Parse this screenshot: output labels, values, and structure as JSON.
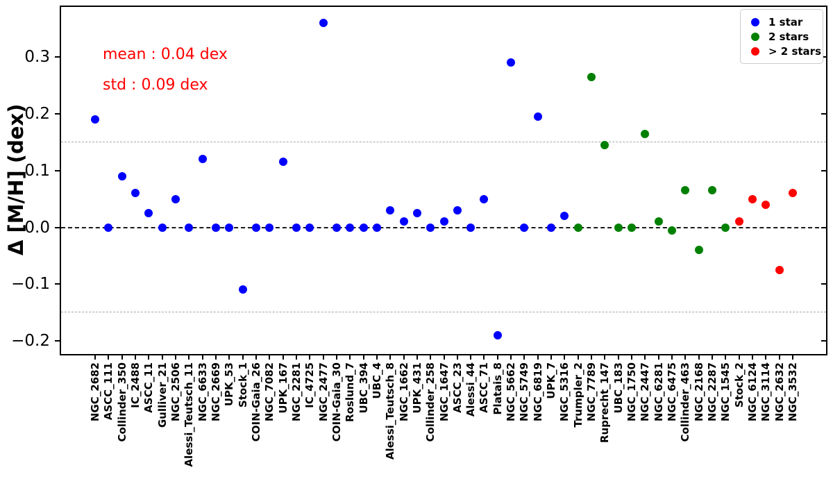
{
  "chart_data": {
    "type": "scatter",
    "title": "",
    "xlabel": "",
    "ylabel": "Δ [M/H] (dex)",
    "ylim": [
      -0.225,
      0.393
    ],
    "yticks": [
      0.3,
      0.2,
      0.1,
      0.0,
      -0.1,
      -0.2
    ],
    "grid": false,
    "legend_position": "upper right",
    "hlines": [
      {
        "y": 0.15,
        "style": "dashed",
        "color": "#a6a6a6",
        "kind": "minor"
      },
      {
        "y": 0.0,
        "style": "dashed",
        "color": "#1a1a1a",
        "kind": "major"
      },
      {
        "y": -0.15,
        "style": "dashed",
        "color": "#a6a6a6",
        "kind": "minor"
      }
    ],
    "annotations": [
      {
        "text": "mean : 0.04 dex",
        "color": "#ff0000"
      },
      {
        "text": "std : 0.09 dex",
        "color": "#ff0000"
      }
    ],
    "legend": [
      {
        "label": "1 star",
        "color": "#0000ff"
      },
      {
        "label": "2 stars",
        "color": "#008000"
      },
      {
        "label": "> 2 stars",
        "color": "#ff0000"
      }
    ],
    "categories": [
      "NGC_2682",
      "ASCC_111",
      "Collinder_350",
      "IC_2488",
      "ASCC_11",
      "Gulliver_21",
      "NGC_2506",
      "Alessi_Teutsch_11",
      "NGC_6633",
      "NGC_2669",
      "UPK_53",
      "Stock_1",
      "COIN-Gaia_26",
      "NGC_7082",
      "UPK_167",
      "NGC_2281",
      "IC_4725",
      "NGC_2477",
      "COIN-Gaia_30",
      "Roslund_7",
      "UBC_394",
      "UBC_4",
      "Alessi_Teutsch_8",
      "NGC_1662",
      "UPK_431",
      "Collinder_258",
      "NGC_1647",
      "ASCC_23",
      "Alessi_44",
      "ASCC_71",
      "Platais_8",
      "NGC_5662",
      "NGC_5749",
      "NGC_6819",
      "UPK_7",
      "NGC_5316",
      "Trumpler_2",
      "NGC_7789",
      "Ruprecht_147",
      "UBC_183",
      "NGC_1750",
      "NGC_2447",
      "NGC_6281",
      "NGC_6475",
      "Collinder_463",
      "NGC_2168",
      "NGC_2287",
      "NGC_1545",
      "Stock_2",
      "NGC_6124",
      "NGC_3114",
      "NGC_2632",
      "NGC_3532"
    ],
    "points": [
      {
        "cluster": "NGC_2682",
        "value": 0.19,
        "group": "1 star"
      },
      {
        "cluster": "ASCC_111",
        "value": 0.0,
        "group": "1 star"
      },
      {
        "cluster": "Collinder_350",
        "value": 0.09,
        "group": "1 star"
      },
      {
        "cluster": "IC_2488",
        "value": 0.06,
        "group": "1 star"
      },
      {
        "cluster": "ASCC_11",
        "value": 0.025,
        "group": "1 star"
      },
      {
        "cluster": "Gulliver_21",
        "value": 0.0,
        "group": "1 star"
      },
      {
        "cluster": "NGC_2506",
        "value": 0.05,
        "group": "1 star"
      },
      {
        "cluster": "Alessi_Teutsch_11",
        "value": 0.0,
        "group": "1 star"
      },
      {
        "cluster": "NGC_6633",
        "value": 0.12,
        "group": "1 star"
      },
      {
        "cluster": "NGC_2669",
        "value": 0.0,
        "group": "1 star"
      },
      {
        "cluster": "UPK_53",
        "value": 0.0,
        "group": "1 star"
      },
      {
        "cluster": "Stock_1",
        "value": -0.11,
        "group": "1 star"
      },
      {
        "cluster": "COIN-Gaia_26",
        "value": 0.0,
        "group": "1 star"
      },
      {
        "cluster": "NGC_7082",
        "value": 0.0,
        "group": "1 star"
      },
      {
        "cluster": "UPK_167",
        "value": 0.115,
        "group": "1 star"
      },
      {
        "cluster": "NGC_2281",
        "value": 0.0,
        "group": "1 star"
      },
      {
        "cluster": "IC_4725",
        "value": 0.0,
        "group": "1 star"
      },
      {
        "cluster": "NGC_2477",
        "value": 0.36,
        "group": "1 star"
      },
      {
        "cluster": "COIN-Gaia_30",
        "value": 0.0,
        "group": "1 star"
      },
      {
        "cluster": "Roslund_7",
        "value": 0.0,
        "group": "1 star"
      },
      {
        "cluster": "UBC_394",
        "value": 0.0,
        "group": "1 star"
      },
      {
        "cluster": "UBC_4",
        "value": 0.0,
        "group": "1 star"
      },
      {
        "cluster": "Alessi_Teutsch_8",
        "value": 0.03,
        "group": "1 star"
      },
      {
        "cluster": "NGC_1662",
        "value": 0.01,
        "group": "1 star"
      },
      {
        "cluster": "UPK_431",
        "value": 0.025,
        "group": "1 star"
      },
      {
        "cluster": "Collinder_258",
        "value": 0.0,
        "group": "1 star"
      },
      {
        "cluster": "NGC_1647",
        "value": 0.01,
        "group": "1 star"
      },
      {
        "cluster": "ASCC_23",
        "value": 0.03,
        "group": "1 star"
      },
      {
        "cluster": "Alessi_44",
        "value": 0.0,
        "group": "1 star"
      },
      {
        "cluster": "ASCC_71",
        "value": 0.05,
        "group": "1 star"
      },
      {
        "cluster": "Platais_8",
        "value": -0.19,
        "group": "1 star"
      },
      {
        "cluster": "NGC_5662",
        "value": 0.29,
        "group": "1 star"
      },
      {
        "cluster": "NGC_5749",
        "value": 0.0,
        "group": "1 star"
      },
      {
        "cluster": "NGC_6819",
        "value": 0.195,
        "group": "1 star"
      },
      {
        "cluster": "UPK_7",
        "value": 0.0,
        "group": "1 star"
      },
      {
        "cluster": "NGC_5316",
        "value": 0.02,
        "group": "1 star"
      },
      {
        "cluster": "Trumpler_2",
        "value": 0.0,
        "group": "2 stars"
      },
      {
        "cluster": "NGC_7789",
        "value": 0.265,
        "group": "2 stars"
      },
      {
        "cluster": "Ruprecht_147",
        "value": 0.145,
        "group": "2 stars"
      },
      {
        "cluster": "UBC_183",
        "value": 0.0,
        "group": "2 stars"
      },
      {
        "cluster": "NGC_1750",
        "value": 0.0,
        "group": "2 stars"
      },
      {
        "cluster": "NGC_2447",
        "value": 0.165,
        "group": "2 stars"
      },
      {
        "cluster": "NGC_6281",
        "value": 0.01,
        "group": "2 stars"
      },
      {
        "cluster": "NGC_6475",
        "value": -0.005,
        "group": "2 stars"
      },
      {
        "cluster": "Collinder_463",
        "value": 0.065,
        "group": "2 stars"
      },
      {
        "cluster": "NGC_2168",
        "value": -0.04,
        "group": "2 stars"
      },
      {
        "cluster": "NGC_2287",
        "value": 0.065,
        "group": "2 stars"
      },
      {
        "cluster": "NGC_1545",
        "value": 0.0,
        "group": "2 stars"
      },
      {
        "cluster": "Stock_2",
        "value": 0.01,
        "group": "> 2 stars"
      },
      {
        "cluster": "NGC_6124",
        "value": 0.05,
        "group": "> 2 stars"
      },
      {
        "cluster": "NGC_3114",
        "value": 0.04,
        "group": "> 2 stars"
      },
      {
        "cluster": "NGC_2632",
        "value": -0.075,
        "group": "> 2 stars"
      },
      {
        "cluster": "NGC_3532",
        "value": 0.06,
        "group": "> 2 stars"
      }
    ]
  }
}
